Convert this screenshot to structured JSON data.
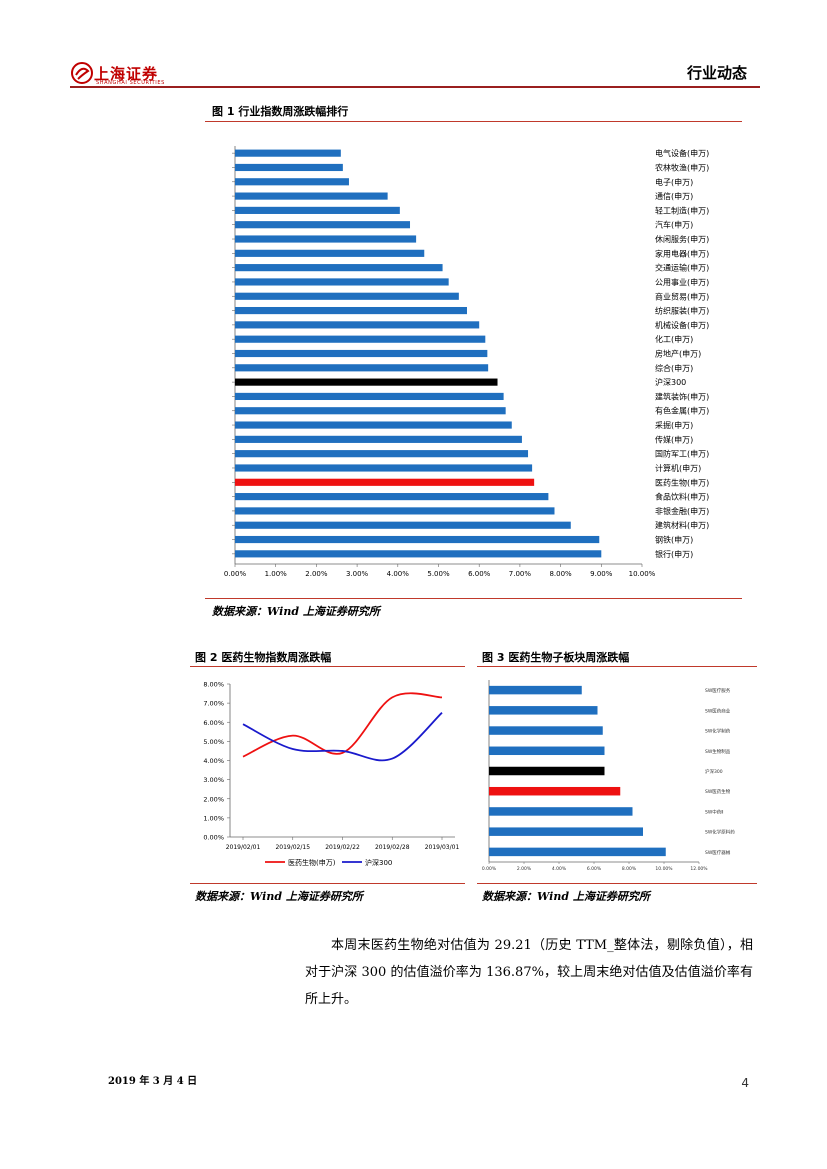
{
  "header": {
    "logo_text": "上海证券",
    "logo_sub": "SHANGHAI SECURITIES",
    "title": "行业动态"
  },
  "fig1": {
    "title": "图 1 行业指数周涨跌幅排行",
    "source": "数据来源：Wind  上海证券研究所"
  },
  "fig2": {
    "title": "图 2 医药生物指数周涨跌幅",
    "source": "数据来源：Wind 上海证券研究所"
  },
  "fig3": {
    "title": "图 3 医药生物子板块周涨跌幅",
    "source": "数据来源：Wind 上海证券研究所"
  },
  "colors": {
    "bar": "#1f6fbf",
    "highlight_red": "#ee1111",
    "highlight_black": "#000000",
    "line_blue": "#1a1acc",
    "accent": "#9a1f1f"
  },
  "chart_data": [
    {
      "id": "fig1",
      "type": "bar",
      "orientation": "horizontal",
      "xlim": [
        0,
        10
      ],
      "xticks": [
        "0.00%",
        "1.00%",
        "2.00%",
        "3.00%",
        "4.00%",
        "5.00%",
        "6.00%",
        "7.00%",
        "8.00%",
        "9.00%",
        "10.00%"
      ],
      "categories": [
        "电气设备(申万)",
        "农林牧渔(申万)",
        "电子(申万)",
        "通信(申万)",
        "轻工制造(申万)",
        "汽车(申万)",
        "休闲服务(申万)",
        "家用电器(申万)",
        "交通运输(申万)",
        "公用事业(申万)",
        "商业贸易(申万)",
        "纺织服装(申万)",
        "机械设备(申万)",
        "化工(申万)",
        "房地产(申万)",
        "综合(申万)",
        "沪深300",
        "建筑装饰(申万)",
        "有色金属(申万)",
        "采掘(申万)",
        "传媒(申万)",
        "国防军工(申万)",
        "计算机(申万)",
        "医药生物(申万)",
        "食品饮料(申万)",
        "非银金融(申万)",
        "建筑材料(申万)",
        "钢铁(申万)",
        "银行(申万)"
      ],
      "values": [
        2.6,
        2.65,
        2.8,
        3.75,
        4.05,
        4.3,
        4.45,
        4.65,
        5.1,
        5.25,
        5.5,
        5.7,
        6.0,
        6.15,
        6.2,
        6.22,
        6.45,
        6.6,
        6.65,
        6.8,
        7.05,
        7.2,
        7.3,
        7.35,
        7.7,
        7.85,
        8.25,
        8.95,
        9.0
      ],
      "highlight": {
        "沪深300": "black",
        "医药生物(申万)": "red"
      }
    },
    {
      "id": "fig2",
      "type": "line",
      "ylim": [
        0,
        8
      ],
      "yticks": [
        "0.00%",
        "1.00%",
        "2.00%",
        "3.00%",
        "4.00%",
        "5.00%",
        "6.00%",
        "7.00%",
        "8.00%"
      ],
      "x": [
        "2019/2/1",
        "2019/2/15",
        "2019/2/22",
        "2019/2/28",
        "2019/3/1"
      ],
      "xlabels": [
        "2019/02/01",
        "2019/02/15",
        "2019/02/22",
        "2019/02/28",
        "2019/03/01"
      ],
      "series": [
        {
          "name": "医药生物(申万)",
          "values": [
            4.2,
            5.3,
            4.4,
            7.3,
            7.3
          ]
        },
        {
          "name": "沪深300",
          "values": [
            5.9,
            4.6,
            4.5,
            4.1,
            6.5
          ]
        }
      ]
    },
    {
      "id": "fig3",
      "type": "bar",
      "orientation": "horizontal",
      "xlim": [
        0,
        12
      ],
      "xticks": [
        "0.00%",
        "2.00%",
        "4.00%",
        "6.00%",
        "8.00%",
        "10.00%",
        "12.00%"
      ],
      "categories": [
        "SW医疗服务",
        "SW医药商业",
        "SW化学制药",
        "SW生物制品",
        "沪深300",
        "SW医药生物",
        "SW中药Ⅱ",
        "SW化学原料药",
        "SW医疗器械"
      ],
      "values": [
        5.3,
        6.2,
        6.5,
        6.6,
        6.6,
        7.5,
        8.2,
        8.8,
        10.1
      ],
      "highlight": {
        "沪深300": "black",
        "SW医药生物": "red"
      }
    }
  ],
  "paragraph": "本周末医药生物绝对估值为 29.21（历史 TTM_整体法，剔除负值），相对于沪深 300 的估值溢价率为 136.87%，较上周末绝对估值及估值溢价率有所上升。",
  "footer": {
    "date": "2019 年 3 月 4 日",
    "page": "4"
  }
}
